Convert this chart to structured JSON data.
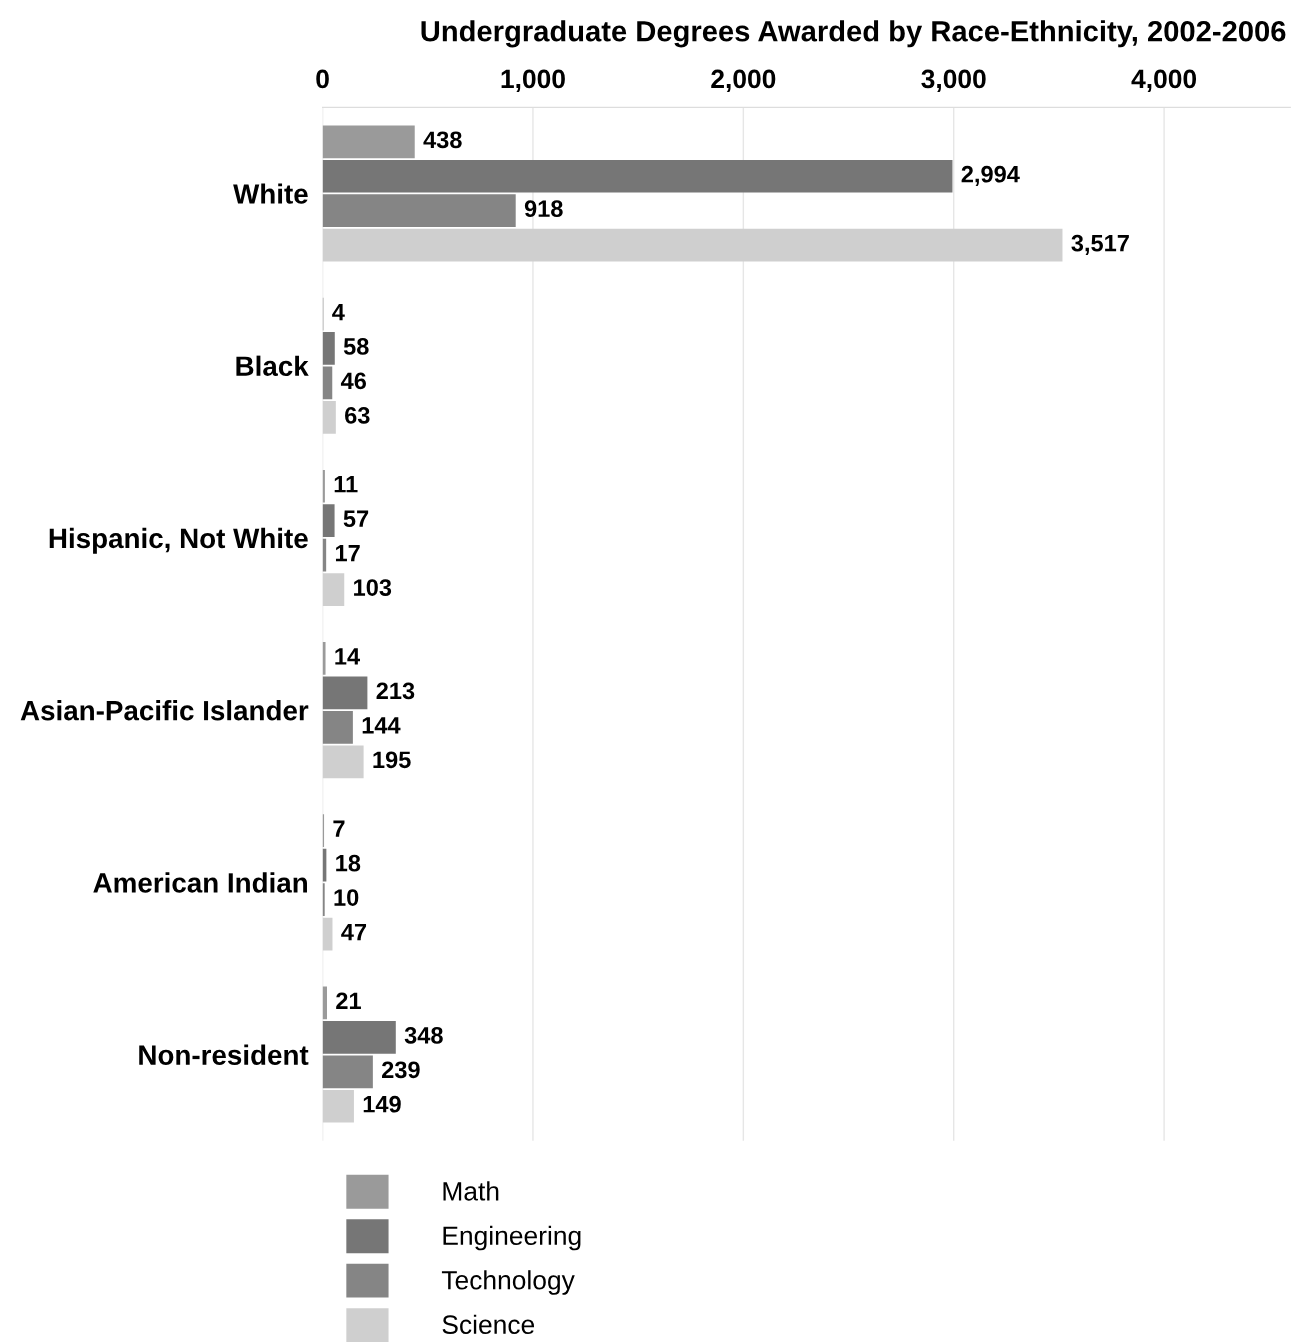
{
  "chart_data": {
    "type": "bar",
    "orientation": "horizontal",
    "title": "Undergraduate Degrees Awarded by Race-Ethnicity, 2002-2006",
    "categories": [
      "White",
      "Black",
      "Hispanic, Not White",
      "Asian-Pacific Islander",
      "American Indian",
      "Non-resident"
    ],
    "series": [
      {
        "name": "Math",
        "color": "#9a9a9a",
        "values": [
          438,
          4,
          11,
          14,
          7,
          21
        ],
        "value_labels": [
          "438",
          "4",
          "11",
          "14",
          "7",
          "21"
        ]
      },
      {
        "name": "Engineering",
        "color": "#767676",
        "values": [
          2994,
          58,
          57,
          213,
          18,
          348
        ],
        "value_labels": [
          "2,994",
          "58",
          "57",
          "213",
          "18",
          "348"
        ]
      },
      {
        "name": "Technology",
        "color": "#858585",
        "values": [
          918,
          46,
          17,
          144,
          10,
          239
        ],
        "value_labels": [
          "918",
          "46",
          "17",
          "144",
          "10",
          "239"
        ]
      },
      {
        "name": "Science",
        "color": "#cfcfcf",
        "values": [
          3517,
          63,
          103,
          195,
          47,
          149
        ],
        "value_labels": [
          "3,517",
          "63",
          "103",
          "195",
          "47",
          "149"
        ]
      }
    ],
    "xlim": [
      0,
      4600
    ],
    "xticks": [
      0,
      {
        "value": 1000,
        "label": "1,000"
      },
      {
        "value": 2000,
        "label": "2,000"
      },
      {
        "value": 3000,
        "label": "3,000"
      },
      {
        "value": 4000,
        "label": "4,000"
      }
    ],
    "grid": "x",
    "legend": "bottom left"
  }
}
